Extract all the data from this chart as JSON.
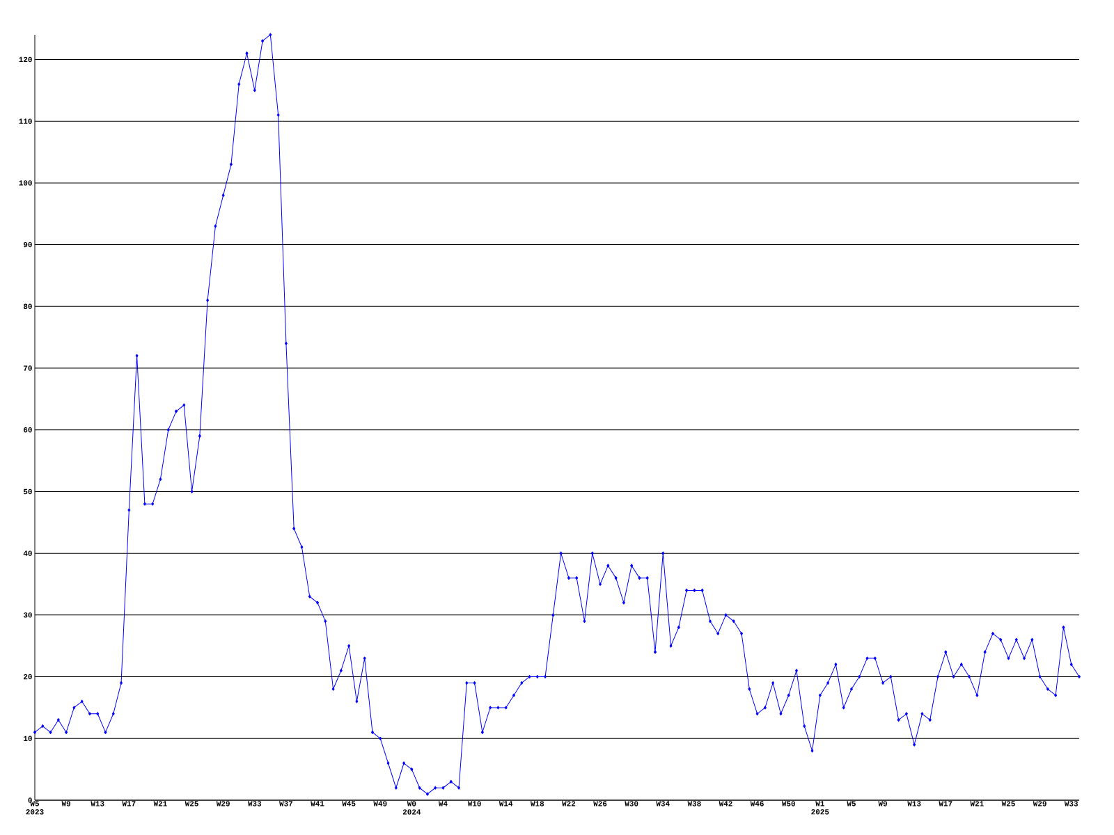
{
  "chart_data": {
    "type": "line",
    "categories": [
      "W5 2023",
      null,
      null,
      null,
      "W9",
      null,
      null,
      null,
      "W13",
      null,
      null,
      null,
      "W17",
      null,
      null,
      null,
      "W21",
      null,
      null,
      null,
      "W25",
      null,
      null,
      null,
      "W29",
      null,
      null,
      null,
      "W33",
      null,
      null,
      null,
      "W37",
      null,
      null,
      null,
      "W41",
      null,
      null,
      null,
      "W45",
      null,
      null,
      null,
      "W49",
      null,
      null,
      null,
      "W0 2024",
      null,
      null,
      null,
      "W4",
      null,
      null,
      null,
      "W10",
      null,
      null,
      null,
      "W14",
      null,
      null,
      null,
      "W18",
      null,
      null,
      null,
      "W22",
      null,
      null,
      null,
      "W26",
      null,
      null,
      null,
      "W30",
      null,
      null,
      null,
      "W34",
      null,
      null,
      null,
      "W38",
      null,
      null,
      null,
      "W42",
      null,
      null,
      null,
      "W46",
      null,
      null,
      null,
      "W50",
      null,
      null,
      null,
      "W1 2025",
      null,
      null,
      null,
      "W5",
      null,
      null,
      null,
      "W9",
      null,
      null,
      null,
      "W13",
      null,
      null,
      null,
      "W17",
      null,
      null,
      null,
      "W21",
      null,
      null,
      null,
      "W25",
      null,
      null,
      null,
      "W29",
      null,
      null,
      null,
      "W33",
      null
    ],
    "series": [
      {
        "color": "#0000ff",
        "values": [
          11,
          12,
          11,
          13,
          11,
          15,
          16,
          14,
          14,
          11,
          14,
          19,
          47,
          72,
          48,
          48,
          52,
          60,
          63,
          64,
          50,
          59,
          81,
          93,
          98,
          103,
          116,
          121,
          115,
          123,
          124,
          111,
          74,
          44,
          41,
          33,
          32,
          29,
          18,
          21,
          25,
          16,
          23,
          11,
          10,
          6,
          2,
          6,
          5,
          2,
          1,
          2,
          2,
          3,
          2,
          19,
          19,
          11,
          15,
          15,
          15,
          17,
          19,
          20,
          20,
          20,
          30,
          40,
          36,
          36,
          29,
          40,
          35,
          38,
          36,
          32,
          38,
          36,
          36,
          24,
          40,
          25,
          28,
          34,
          34,
          34,
          29,
          27,
          30,
          29,
          27,
          18,
          14,
          15,
          19,
          14,
          17,
          21,
          12,
          8,
          17,
          19,
          22,
          15,
          18,
          20,
          23,
          23,
          19,
          20,
          13,
          14,
          9,
          14,
          13,
          20,
          24,
          20,
          22,
          20,
          17,
          24,
          27,
          26,
          23,
          26,
          23,
          26,
          20,
          18,
          17,
          28,
          22,
          20
        ]
      }
    ],
    "ylim": [
      0,
      124
    ],
    "yticks": [
      0,
      10,
      20,
      30,
      40,
      50,
      60,
      70,
      80,
      90,
      100,
      110,
      120
    ],
    "grid": "y",
    "marker": "diamond",
    "line_style": "solid"
  }
}
